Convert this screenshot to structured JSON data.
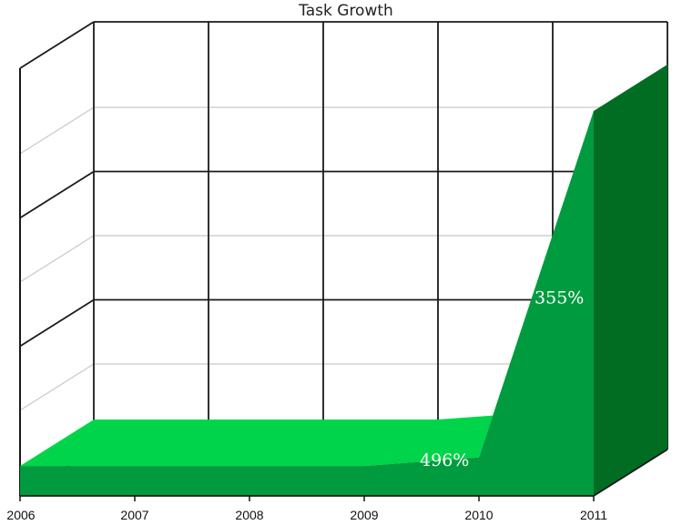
{
  "chart_data": {
    "type": "area",
    "title": "Task Growth",
    "categories": [
      "2006",
      "2007",
      "2008",
      "2009",
      "2010",
      "2011"
    ],
    "ylim": [
      0,
      100
    ],
    "grid": true,
    "series": [
      {
        "values": [
          7,
          7,
          7,
          7,
          9,
          90
        ]
      }
    ],
    "annotations": [
      {
        "text": "496%",
        "x": "2009.7",
        "y": 7
      },
      {
        "text": "355%",
        "x": "2010.7",
        "y": 45
      }
    ],
    "colors": {
      "front": "#00d44a",
      "mid": "#009b3e",
      "side": "#006d23",
      "grid_major": "#1a1a1a",
      "grid_minor": "#c8c8c8"
    }
  }
}
